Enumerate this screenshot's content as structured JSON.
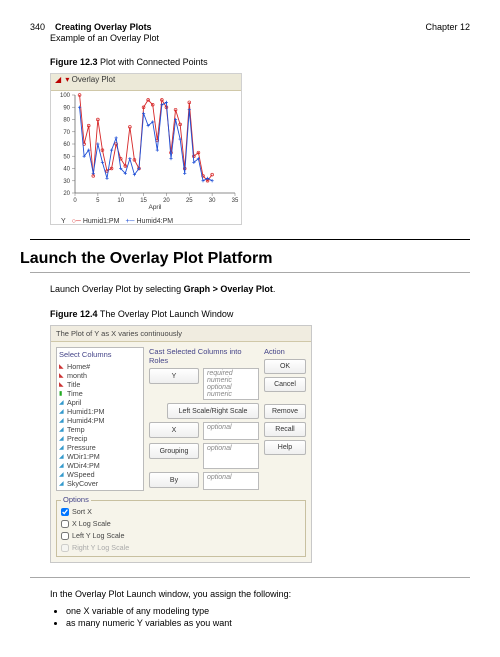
{
  "header": {
    "page_number": "340",
    "title": "Creating Overlay Plots",
    "subtitle": "Example of an Overlay Plot",
    "chapter": "Chapter 12"
  },
  "figure1": {
    "caption_bold": "Figure 12.3",
    "caption_rest": " Plot with Connected Points",
    "window_title": "Overlay Plot",
    "y_label": "Y",
    "x_label": "April",
    "legend_series1": "Humid1:PM",
    "legend_series2": "Humid4:PM",
    "chart": {
      "type": "line",
      "ylim": [
        20,
        100
      ],
      "ytick_step": 10,
      "xlim": [
        0,
        35
      ],
      "xtick_step": 5,
      "background_color": "#ffffff",
      "grid_color": "#e6e6e6",
      "series": [
        {
          "name": "Humid1:PM",
          "color": "#d62728",
          "marker": "circle",
          "x": [
            1,
            2,
            3,
            4,
            5,
            6,
            7,
            8,
            9,
            10,
            11,
            12,
            13,
            14,
            15,
            16,
            17,
            18,
            19,
            20,
            21,
            22,
            23,
            24,
            25,
            26,
            27,
            28,
            29,
            30
          ],
          "y": [
            100,
            60,
            75,
            34,
            80,
            55,
            38,
            40,
            60,
            48,
            42,
            74,
            47,
            40,
            90,
            96,
            92,
            63,
            96,
            90,
            53,
            88,
            76,
            40,
            94,
            50,
            53,
            34,
            30,
            35
          ]
        },
        {
          "name": "Humid4:PM",
          "color": "#1f4fd6",
          "marker": "plus",
          "x": [
            1,
            2,
            3,
            4,
            5,
            6,
            7,
            8,
            9,
            10,
            11,
            12,
            13,
            14,
            15,
            16,
            17,
            18,
            19,
            20,
            21,
            22,
            23,
            24,
            25,
            26,
            27,
            28,
            29,
            30
          ],
          "y": [
            90,
            50,
            55,
            36,
            60,
            45,
            32,
            55,
            65,
            40,
            36,
            48,
            35,
            40,
            85,
            75,
            78,
            55,
            92,
            94,
            48,
            80,
            64,
            36,
            88,
            45,
            48,
            30,
            32,
            30
          ]
        }
      ]
    }
  },
  "section": {
    "heading": "Launch the Overlay Plot Platform",
    "intro_pre": "Launch Overlay Plot by selecting ",
    "intro_bold": "Graph > Overlay Plot",
    "intro_post": "."
  },
  "figure2": {
    "caption_bold": "Figure 12.4",
    "caption_rest": " The Overlay Plot Launch Window",
    "dialog_title": "The Plot of Y as X varies continuously",
    "select_columns_label": "Select Columns",
    "cast_label": "Cast Selected Columns into Roles",
    "action_label": "Action",
    "columns": [
      {
        "name": "Home#",
        "icon_color": "#c33",
        "icon": "tri"
      },
      {
        "name": "month",
        "icon_color": "#c33",
        "icon": "tri"
      },
      {
        "name": "Title",
        "icon_color": "#c33",
        "icon": "tri"
      },
      {
        "name": "Time",
        "icon_color": "#2a2",
        "icon": "bar"
      },
      {
        "name": "April",
        "icon_color": "#39c",
        "icon": "cont"
      },
      {
        "name": "Humid1:PM",
        "icon_color": "#39c",
        "icon": "cont"
      },
      {
        "name": "Humid4:PM",
        "icon_color": "#39c",
        "icon": "cont"
      },
      {
        "name": "Temp",
        "icon_color": "#39c",
        "icon": "cont"
      },
      {
        "name": "Precip",
        "icon_color": "#39c",
        "icon": "cont"
      },
      {
        "name": "Pressure",
        "icon_color": "#39c",
        "icon": "cont"
      },
      {
        "name": "WDir1:PM",
        "icon_color": "#39c",
        "icon": "cont"
      },
      {
        "name": "WDir4:PM",
        "icon_color": "#39c",
        "icon": "cont"
      },
      {
        "name": "WSpeed",
        "icon_color": "#39c",
        "icon": "cont"
      },
      {
        "name": "SkyCover",
        "icon_color": "#39c",
        "icon": "cont"
      }
    ],
    "roles": {
      "y_label": "Y",
      "y_placeholder_line1": "required numeric",
      "y_placeholder_line2": "optional numeric",
      "lr_label": "Left Scale/Right Scale",
      "x_label": "X",
      "x_placeholder": "optional",
      "grouping_label": "Grouping",
      "grouping_placeholder": "optional",
      "by_label": "By",
      "by_placeholder": "optional"
    },
    "actions": {
      "ok": "OK",
      "cancel": "Cancel",
      "remove": "Remove",
      "recall": "Recall",
      "help": "Help"
    },
    "options": {
      "title": "Options",
      "sort_x": "Sort X",
      "x_log": "X Log Scale",
      "left_log": "Left Y Log Scale",
      "right_log": "Right Y Log Scale"
    }
  },
  "closing": {
    "intro": "In the Overlay Plot Launch window, you assign the following:",
    "bullet1": "one X variable of any modeling type",
    "bullet2": "as many numeric Y variables as you want"
  }
}
